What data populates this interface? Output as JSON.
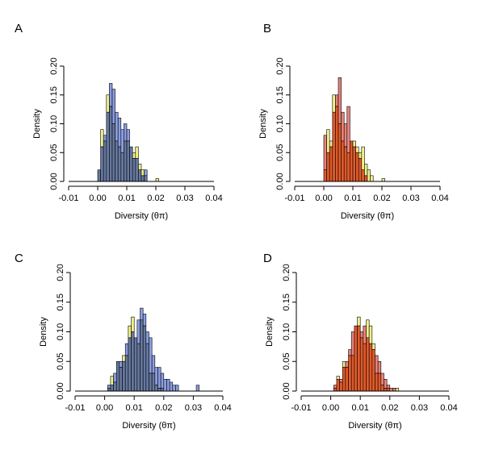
{
  "colors": {
    "yellow": "#f0f08a",
    "blue": "#8c9de0",
    "blue_overlap": "#66789e",
    "red": "#e8847e",
    "red_overlap": "#e15a2a"
  },
  "chart_data": [
    {
      "panel": "A",
      "type": "bar",
      "xlabel": "Diversity (θπ)",
      "ylabel": "Density",
      "xlim": [
        -0.01,
        0.04
      ],
      "ylim": [
        0,
        0.2
      ],
      "xticks": [
        "-0.01",
        "0.00",
        "0.01",
        "0.02",
        "0.03",
        "0.04"
      ],
      "yticks": [
        "0.00",
        "0.05",
        "0.10",
        "0.15",
        "0.20"
      ],
      "bin_width": 0.001,
      "bin_start": 0.0,
      "series": [
        {
          "color": "#f0f08a",
          "values": [
            0.02,
            0.09,
            0.07,
            0.15,
            0.13,
            0.1,
            0.07,
            0.06,
            0.05,
            0.07,
            0.07,
            0.06,
            0.05,
            0.06,
            0.03,
            0.02,
            0.01,
            0,
            0,
            0,
            0.005
          ]
        },
        {
          "color": "#8c9de0",
          "values": [
            0.02,
            0.06,
            0.08,
            0.12,
            0.17,
            0.16,
            0.12,
            0.11,
            0.09,
            0.1,
            0.09,
            0.06,
            0.04,
            0.04,
            0.02,
            0.01,
            0.02,
            0,
            0,
            0,
            0
          ]
        }
      ],
      "overlap_color": "#66789e"
    },
    {
      "panel": "B",
      "type": "bar",
      "xlabel": "Diversity (θπ)",
      "ylabel": "Density",
      "xlim": [
        -0.01,
        0.04
      ],
      "ylim": [
        0,
        0.2
      ],
      "xticks": [
        "-0.01",
        "0.00",
        "0.01",
        "0.02",
        "0.03",
        "0.04"
      ],
      "yticks": [
        "0.00",
        "0.05",
        "0.10",
        "0.15",
        "0.20"
      ],
      "bin_width": 0.001,
      "bin_start": 0.0,
      "series": [
        {
          "color": "#f0f08a",
          "values": [
            0.02,
            0.09,
            0.07,
            0.15,
            0.13,
            0.1,
            0.07,
            0.06,
            0.05,
            0.07,
            0.07,
            0.06,
            0.05,
            0.06,
            0.03,
            0.02,
            0.01,
            0,
            0,
            0,
            0.005
          ]
        },
        {
          "color": "#e8847e",
          "values": [
            0.08,
            0.05,
            0.06,
            0.12,
            0.15,
            0.18,
            0.12,
            0.1,
            0.13,
            0.07,
            0.06,
            0.05,
            0.04,
            0.02,
            0.01,
            0,
            0,
            0,
            0,
            0,
            0
          ]
        }
      ],
      "overlap_color": "#e15a2a"
    },
    {
      "panel": "C",
      "type": "bar",
      "xlabel": "Diversity (θπ)",
      "ylabel": "Density",
      "xlim": [
        -0.01,
        0.04
      ],
      "ylim": [
        0,
        0.2
      ],
      "xticks": [
        "-0.01",
        "0.00",
        "0.01",
        "0.02",
        "0.03",
        "0.04"
      ],
      "yticks": [
        "0.00",
        "0.05",
        "0.10",
        "0.15",
        "0.20"
      ],
      "bin_width": 0.001,
      "bin_start": 0.0,
      "series": [
        {
          "color": "#f0f08a",
          "values": [
            0,
            0.005,
            0.025,
            0.015,
            0.05,
            0.04,
            0.06,
            0.06,
            0.11,
            0.125,
            0.09,
            0.08,
            0.12,
            0.11,
            0.08,
            0.03,
            0.03,
            0.01,
            0.005,
            0.005,
            0,
            0,
            0,
            0,
            0,
            0,
            0,
            0,
            0,
            0,
            0,
            0
          ]
        },
        {
          "color": "#8c9de0",
          "values": [
            0,
            0.01,
            0.01,
            0.03,
            0.05,
            0.05,
            0.05,
            0.08,
            0.09,
            0.1,
            0.09,
            0.12,
            0.14,
            0.13,
            0.1,
            0.09,
            0.06,
            0.04,
            0.04,
            0.03,
            0.02,
            0.02,
            0.015,
            0.01,
            0.01,
            0,
            0,
            0,
            0,
            0,
            0,
            0.01
          ]
        }
      ],
      "overlap_color": "#66789e"
    },
    {
      "panel": "D",
      "type": "bar",
      "xlabel": "Diversity (θπ)",
      "ylabel": "Density",
      "xlim": [
        -0.01,
        0.04
      ],
      "ylim": [
        0,
        0.2
      ],
      "xticks": [
        "-0.01",
        "0.00",
        "0.01",
        "0.02",
        "0.03",
        "0.04"
      ],
      "yticks": [
        "0.00",
        "0.05",
        "0.10",
        "0.15",
        "0.20"
      ],
      "bin_width": 0.001,
      "bin_start": 0.0,
      "series": [
        {
          "color": "#f0f08a",
          "values": [
            0,
            0.005,
            0.025,
            0.015,
            0.05,
            0.04,
            0.06,
            0.06,
            0.11,
            0.125,
            0.09,
            0.08,
            0.12,
            0.11,
            0.08,
            0.03,
            0.03,
            0.01,
            0.005,
            0.005,
            0,
            0,
            0.005
          ]
        },
        {
          "color": "#e8847e",
          "values": [
            0,
            0.01,
            0.02,
            0.02,
            0.04,
            0.05,
            0.07,
            0.1,
            0.11,
            0.11,
            0.1,
            0.11,
            0.09,
            0.08,
            0.07,
            0.06,
            0.05,
            0.03,
            0.02,
            0.01,
            0.005,
            0.005,
            0
          ]
        }
      ],
      "overlap_color": "#e15a2a"
    }
  ]
}
